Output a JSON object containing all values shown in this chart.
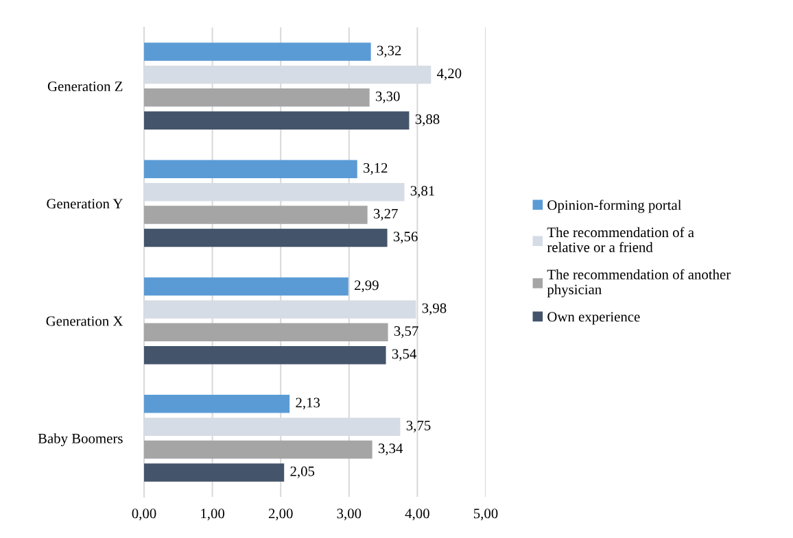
{
  "chart_data": {
    "type": "bar",
    "orientation": "horizontal",
    "categories": [
      "Generation Z",
      "Generation Y",
      "Generation X",
      "Baby Boomers"
    ],
    "series": [
      {
        "name": "Opinion-forming portal",
        "color": "#5b9bd5",
        "values": [
          3.32,
          3.12,
          2.99,
          2.13
        ],
        "value_labels": [
          "3,32",
          "3,12",
          "2,99",
          "2,13"
        ]
      },
      {
        "name": "The recommendation of a\nrelative or a friend",
        "color": "#d6dce5",
        "values": [
          4.2,
          3.81,
          3.98,
          3.75
        ],
        "value_labels": [
          "4,20",
          "3,81",
          "3,98",
          "3,75"
        ]
      },
      {
        "name": "The recommendation of another\nphysician",
        "color": "#a5a5a5",
        "values": [
          3.3,
          3.27,
          3.57,
          3.34
        ],
        "value_labels": [
          "3,30",
          "3,27",
          "3,57",
          "3,34"
        ]
      },
      {
        "name": "Own experience",
        "color": "#44546a",
        "values": [
          3.88,
          3.56,
          3.54,
          2.05
        ],
        "value_labels": [
          "3,88",
          "3,56",
          "3,54",
          "2,05"
        ]
      }
    ],
    "xlim": [
      0,
      5
    ],
    "xticks": [
      {
        "value": 0,
        "label": "0,00"
      },
      {
        "value": 1,
        "label": "1,00"
      },
      {
        "value": 2,
        "label": "2,00"
      },
      {
        "value": 3,
        "label": "3,00"
      },
      {
        "value": 4,
        "label": "4,00"
      },
      {
        "value": 5,
        "label": "5,00"
      }
    ],
    "grid": "x",
    "legend": "right"
  }
}
